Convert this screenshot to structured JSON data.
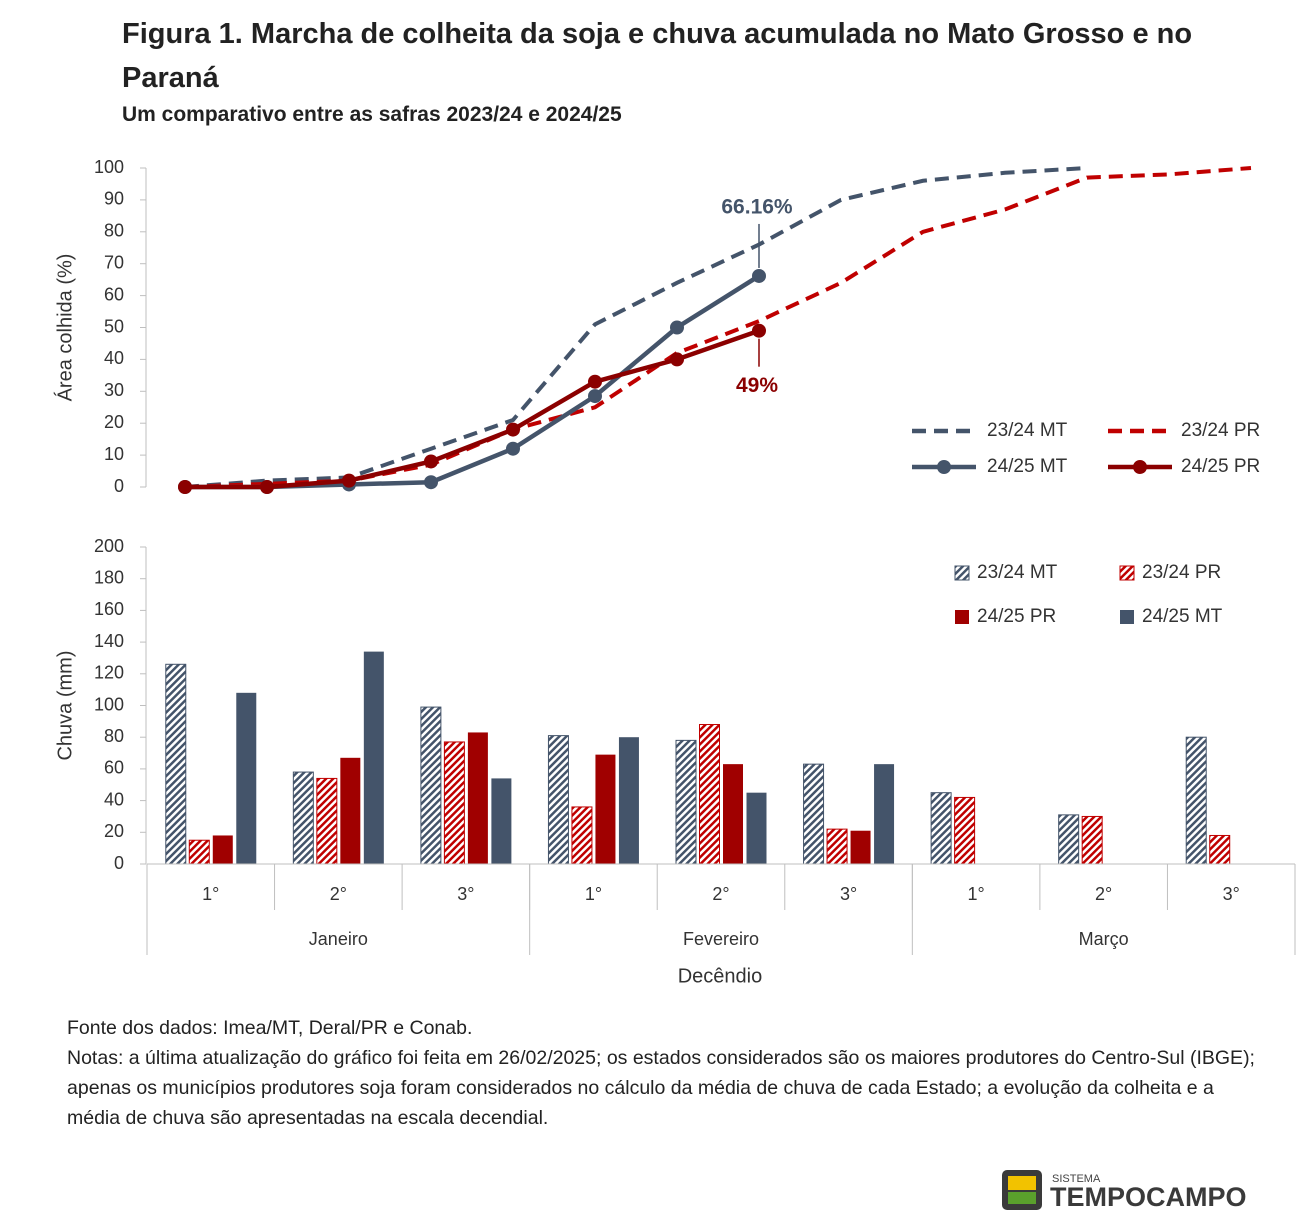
{
  "title": "Figura 1. Marcha de colheita da soja e chuva acumulada no Mato Grosso e no Paraná",
  "subtitle": "Um comparativo entre as safras 2023/24 e 2024/25",
  "chart_data": [
    {
      "type": "line",
      "y_label": "Área colhida (%)",
      "categories": [
        null,
        null,
        null,
        null,
        null,
        null,
        null,
        null,
        null,
        null,
        null,
        null,
        null,
        null
      ],
      "ylim": [
        0,
        100
      ],
      "yticks": [
        0,
        10,
        20,
        30,
        40,
        50,
        60,
        70,
        80,
        90,
        100
      ],
      "legend": "right",
      "series": [
        {
          "name": "23/24 MT",
          "color": "#44546a",
          "dashed": true,
          "markers": false,
          "values": [
            0,
            2,
            3,
            12,
            21,
            51,
            64,
            76,
            90,
            96,
            98.5,
            100,
            null,
            null
          ]
        },
        {
          "name": "23/24 PR",
          "color": "#c00000",
          "dashed": true,
          "markers": false,
          "values": [
            0,
            1,
            2,
            7,
            18,
            25,
            42,
            52,
            64,
            80,
            87,
            97,
            98,
            100
          ]
        },
        {
          "name": "24/25 MT",
          "color": "#44546a",
          "dashed": false,
          "markers": true,
          "values": [
            0,
            0,
            0.8,
            1.5,
            12,
            28.5,
            50,
            66.16,
            null,
            null,
            null,
            null,
            null,
            null
          ],
          "value_labels": [
            null,
            null,
            null,
            null,
            null,
            null,
            null,
            "66.16%",
            null,
            null,
            null,
            null,
            null,
            null
          ]
        },
        {
          "name": "24/25 PR",
          "color": "#8b0000",
          "dashed": false,
          "markers": true,
          "values": [
            0,
            0,
            2,
            8,
            18,
            33,
            40,
            49,
            null,
            null,
            null,
            null,
            null,
            null
          ],
          "value_labels": [
            null,
            null,
            null,
            null,
            null,
            null,
            null,
            "49%",
            null,
            null,
            null,
            null,
            null,
            null
          ]
        }
      ]
    },
    {
      "type": "bar",
      "y_label": "Chuva (mm)",
      "x_label": "Decêndio",
      "categories": [
        "1°",
        "2°",
        "3°",
        "1°",
        "2°",
        "3°",
        "1°",
        "2°",
        "3°"
      ],
      "groups": [
        "Janeiro",
        "Fevereiro",
        "Março"
      ],
      "ylim": [
        0,
        200
      ],
      "yticks": [
        0,
        20,
        40,
        60,
        80,
        100,
        120,
        140,
        160,
        180,
        200
      ],
      "legend": "upper right",
      "series": [
        {
          "name": "23/24 MT",
          "color": "#44546a",
          "hatched": true,
          "values": [
            126,
            58,
            99,
            81,
            78,
            63,
            45,
            31,
            80
          ]
        },
        {
          "name": "23/24 PR",
          "color": "#c00000",
          "hatched": true,
          "values": [
            15,
            54,
            77,
            36,
            88,
            22,
            42,
            30,
            18
          ]
        },
        {
          "name": "24/25 PR",
          "color": "#a00000",
          "hatched": false,
          "values": [
            18,
            67,
            83,
            69,
            63,
            21,
            null,
            null,
            null
          ]
        },
        {
          "name": "24/25 MT",
          "color": "#44546a",
          "hatched": false,
          "values": [
            108,
            134,
            54,
            80,
            45,
            63,
            null,
            null,
            null
          ]
        }
      ]
    }
  ],
  "footer": {
    "source": "Fonte dos dados: Imea/MT, Deral/PR e Conab.",
    "notes": "Notas: a última atualização do gráfico foi feita em 26/02/2025; os estados considerados são os maiores produtores do Centro-Sul (IBGE); apenas os municípios produtores soja foram considerados no cálculo da média de chuva de cada Estado; a evolução da colheita e a média de chuva são apresentadas na escala decendial."
  },
  "logo": {
    "top": "SISTEMA",
    "name": "TEMPOCAMPO"
  }
}
